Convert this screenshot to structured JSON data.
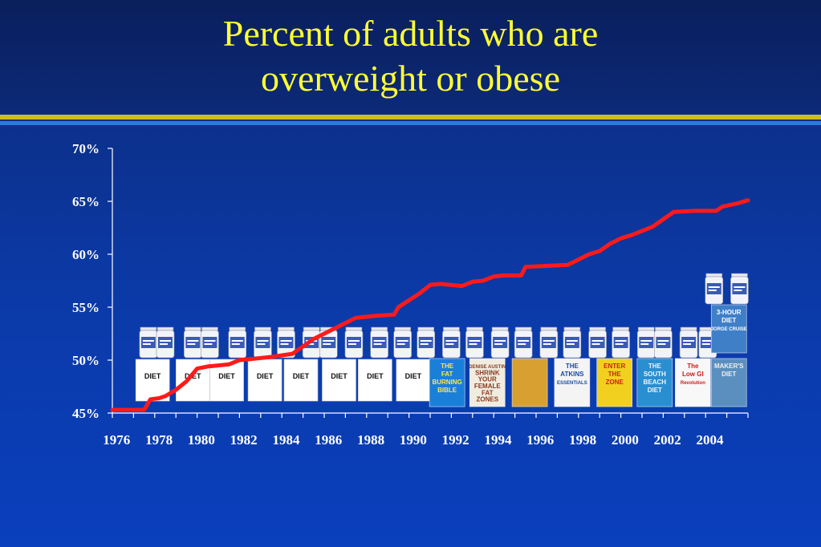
{
  "title_line1": "Percent of adults who are",
  "title_line2": "overweight or obese",
  "colors": {
    "title": "#ffff33",
    "line": "#ff1a1a",
    "axis": "#ffffff",
    "gold_rule": "#c9c21a",
    "blue_rule": "#2c7bdc"
  },
  "chart_data": {
    "type": "line",
    "title": "Percent of adults who are overweight or obese",
    "xlabel": "",
    "ylabel": "",
    "ylim": [
      45,
      70
    ],
    "xlim": [
      1975.5,
      2005.5
    ],
    "yticks": [
      "45%",
      "50%",
      "55%",
      "60%",
      "65%",
      "70%"
    ],
    "ytick_values": [
      45,
      50,
      55,
      60,
      65,
      70
    ],
    "xticks": [
      "1976",
      "1978",
      "1980",
      "1982",
      "1984",
      "1986",
      "1988",
      "1990",
      "1992",
      "1994",
      "1996",
      "1998",
      "2000",
      "2002",
      "2004"
    ],
    "grid": false,
    "series": [
      {
        "x": [
          1975.5,
          1976,
          1977,
          1977.3,
          1977.7,
          1978,
          1978.5,
          1979,
          1979.5,
          1980,
          1980.5,
          1981,
          1981.5,
          1982,
          1983,
          1984,
          1985,
          1986,
          1987,
          1988,
          1988.8,
          1989,
          1990,
          1990.5,
          1991,
          1992,
          1992.5,
          1993,
          1993.5,
          1994,
          1994.8,
          1995,
          1996,
          1997,
          1997.5,
          1998,
          1998.5,
          1999,
          1999.5,
          2000,
          2001,
          2001.5,
          2002,
          2003,
          2004,
          2004.3,
          2005,
          2005.5
        ],
        "values": [
          45.3,
          45.3,
          45.3,
          46.3,
          46.4,
          46.6,
          47.2,
          48.0,
          49.2,
          49.4,
          49.5,
          49.6,
          50.0,
          50.1,
          50.3,
          50.6,
          52.0,
          53.0,
          54.0,
          54.2,
          54.3,
          55.0,
          56.3,
          57.1,
          57.2,
          57.0,
          57.4,
          57.5,
          57.9,
          58.0,
          58.0,
          58.8,
          58.9,
          59.0,
          59.5,
          60.0,
          60.3,
          61.0,
          61.5,
          61.8,
          62.6,
          63.3,
          64.0,
          64.1,
          64.1,
          64.5,
          64.8,
          65.1
        ]
      }
    ]
  },
  "overlays": {
    "diet_label": "DIET",
    "bottle_years": [
      1977.2,
      1978,
      1979.3,
      1980.1,
      1981.4,
      1982.6,
      1983.7,
      1984.9,
      1985.7,
      1986.9,
      1988.1,
      1989.2,
      1990.3,
      1991.5,
      1992.6,
      1993.8,
      1994.9,
      1996.1,
      1997.2,
      1998.4,
      1999.5,
      2000.7,
      2001.5,
      2002.7,
      2003.6
    ],
    "top_bottle_years": [
      2003.9,
      2005.1
    ],
    "diet_box_years": [
      1977.4,
      1979.3,
      1980.9,
      1982.7,
      1984.4,
      1986.2,
      1987.9,
      1989.7
    ],
    "books": [
      {
        "year": 1991.3,
        "lines": [
          "THE",
          "FAT",
          "BURNING",
          "BIBLE"
        ],
        "bg": "#1a7fd8",
        "fg": "#ffe84a"
      },
      {
        "year": 1993.2,
        "lines": [
          "DENISE AUSTIN",
          "SHRINK",
          "YOUR",
          "FEMALE",
          "FAT",
          "ZONES"
        ],
        "bg": "#f0ece0",
        "fg": "#8a3a20"
      },
      {
        "year": 1995.2,
        "lines": [],
        "bg": "#d8a030",
        "fg": "#ffffff"
      },
      {
        "year": 1997.2,
        "lines": [
          "THE",
          "ATKINS",
          "ESSENTIALS"
        ],
        "bg": "#f4f4f4",
        "fg": "#1a4aa0"
      },
      {
        "year": 1999.2,
        "lines": [
          "ENTER",
          "THE",
          "ZONE"
        ],
        "bg": "#f2d020",
        "fg": "#d02010"
      },
      {
        "year": 2001.1,
        "lines": [
          "THE",
          "SOUTH",
          "BEACH",
          "DIET"
        ],
        "bg": "#2a8fd0",
        "fg": "#f0f6ff"
      },
      {
        "year": 2002.9,
        "lines": [
          "The",
          "Low GI",
          "Revolution"
        ],
        "bg": "#f8f8f8",
        "fg": "#d01818"
      },
      {
        "year": 2004.6,
        "lines": [
          "MAKER'S",
          "DIET"
        ],
        "bg": "#5b8fc0",
        "fg": "#f0f0f0"
      }
    ],
    "top_book": {
      "year": 2004.6,
      "lines": [
        "3-HOUR",
        "DIET",
        "JORGE CRUISE"
      ],
      "bg": "#3f7fc8",
      "fg": "#ffffff"
    }
  }
}
